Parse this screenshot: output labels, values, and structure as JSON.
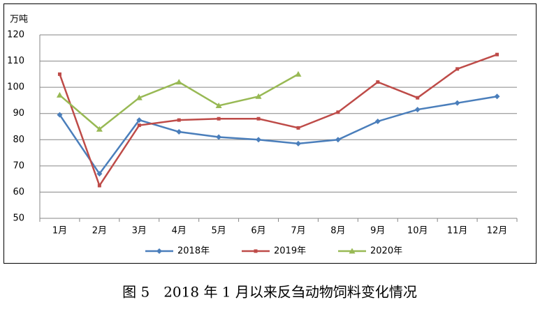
{
  "chart_data": {
    "type": "line",
    "y_label": "万吨",
    "caption": "图 5　2018 年 1 月以来反刍动物饲料变化情况",
    "categories": [
      "1月",
      "2月",
      "3月",
      "4月",
      "5月",
      "6月",
      "7月",
      "8月",
      "9月",
      "10月",
      "11月",
      "12月"
    ],
    "series": [
      {
        "name": "2018年",
        "color": "#4a7ebb",
        "marker": "diamond",
        "values": [
          89.5,
          67,
          87.5,
          83,
          81,
          80,
          78.5,
          80,
          87,
          91.5,
          94,
          96.5
        ]
      },
      {
        "name": "2019年",
        "color": "#be4b48",
        "marker": "square",
        "values": [
          105,
          62.5,
          85.5,
          87.5,
          88,
          88,
          84.5,
          90.5,
          102,
          96,
          107,
          112.5
        ]
      },
      {
        "name": "2020年",
        "color": "#98b954",
        "marker": "triangle",
        "values": [
          97,
          84,
          96,
          102,
          93,
          96.5,
          105,
          null,
          null,
          null,
          null,
          null
        ]
      }
    ],
    "ylim": [
      50,
      120
    ],
    "yticks": [
      50,
      60,
      70,
      80,
      90,
      100,
      110,
      120
    ],
    "grid": true,
    "legend": "bottom"
  }
}
